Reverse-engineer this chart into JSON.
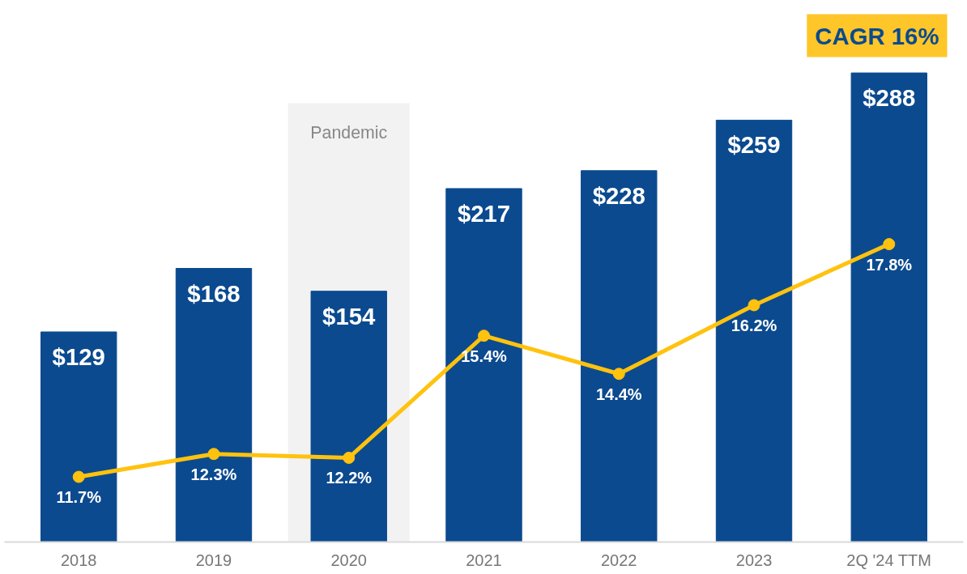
{
  "chart_data": {
    "type": "bar",
    "categories": [
      "2018",
      "2019",
      "2020",
      "2021",
      "2022",
      "2023",
      "2Q '24 TTM"
    ],
    "series": [
      {
        "color": "#0b4a8f",
        "values": [
          129,
          168,
          154,
          217,
          228,
          259,
          288
        ],
        "value_labels": [
          "$129",
          "$168",
          "$154",
          "$217",
          "$228",
          "$259",
          "$288"
        ]
      },
      {
        "type": "line",
        "axis": "y2",
        "color": "#ffc20e",
        "marker": "circle",
        "values": [
          11.7,
          12.3,
          12.2,
          15.4,
          14.4,
          16.2,
          17.8
        ],
        "value_labels": [
          "11.7%",
          "12.3%",
          "12.2%",
          "15.4%",
          "14.4%",
          "16.2%",
          "17.8%"
        ]
      }
    ],
    "tick_labels": "x",
    "grid": false,
    "bands": [
      {
        "axis": "x",
        "from": "2020",
        "to": "2020",
        "label": "Pandemic",
        "color": "#f2f2f3"
      }
    ],
    "annotations": [
      "CAGR 16%"
    ]
  }
}
